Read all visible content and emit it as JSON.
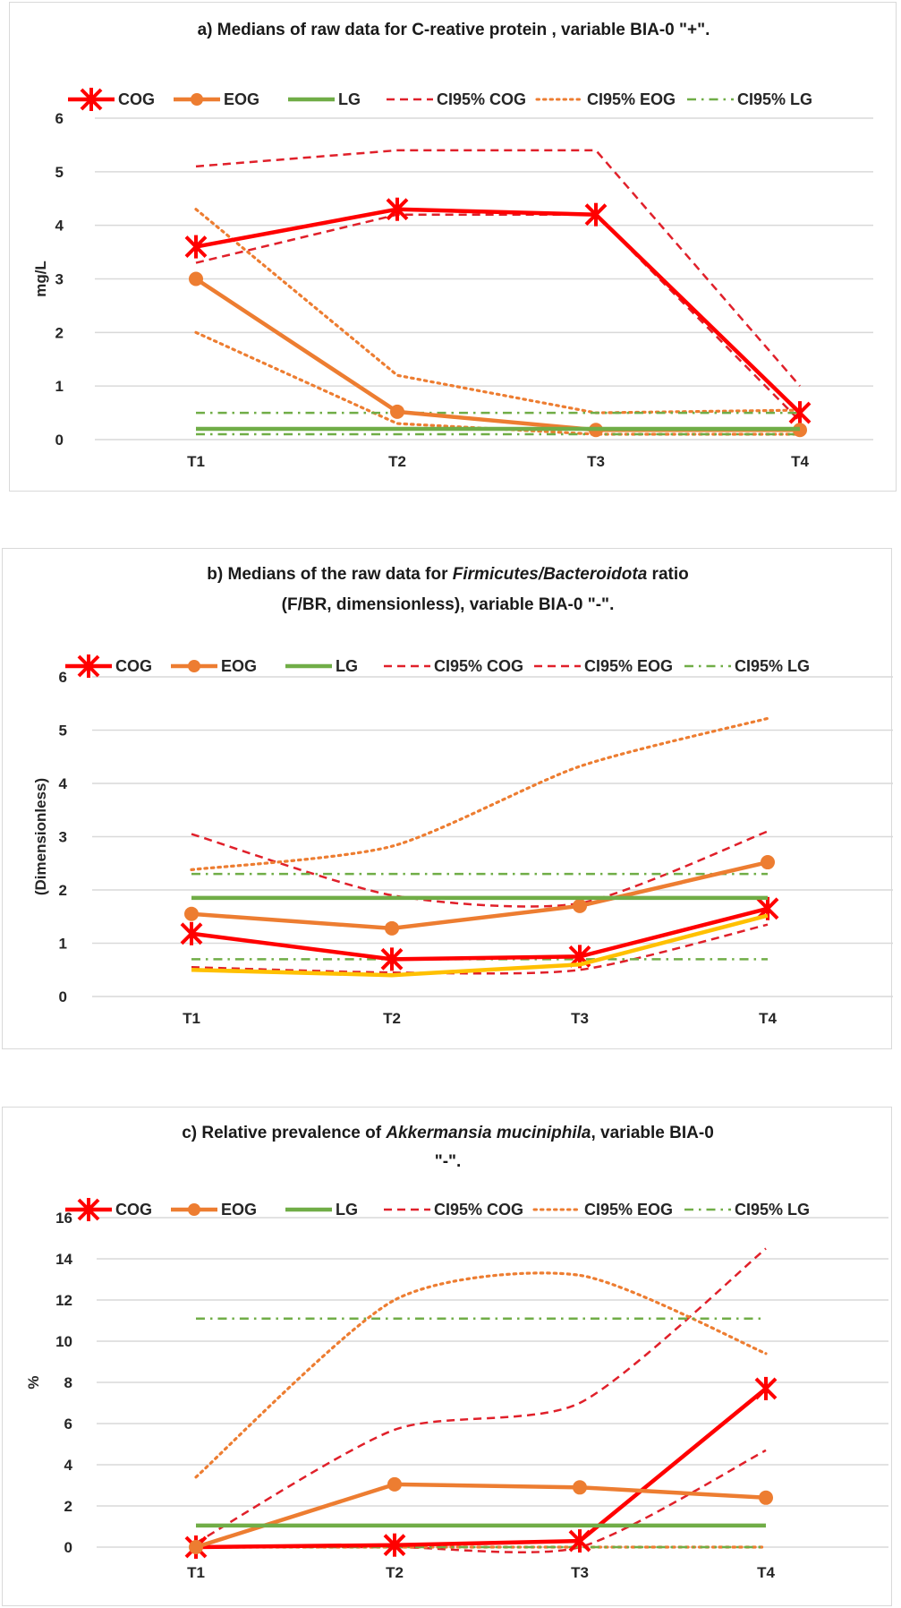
{
  "chart_data": [
    {
      "id": "a",
      "type": "line",
      "title": "a) Medians of  raw data for C-reative protein ,  variable BIA-0 \"+\".",
      "title_lines": [
        [
          {
            "text": "a) Medians of  raw data for C-reative protein ,  variable BIA-0 \"+\".",
            "italic": false
          }
        ]
      ],
      "xlabel": "",
      "ylabel": "mg/L",
      "categories": [
        "T1",
        "T2",
        "T3",
        "T4"
      ],
      "ylim": [
        0,
        6
      ],
      "yticks": [
        0,
        1,
        2,
        3,
        4,
        5,
        6
      ],
      "grid": true,
      "legend_position": "top",
      "legend": [
        "COG",
        "EOG",
        "LG",
        "CI95% COG",
        "CI95% EOG",
        "CI95% LG"
      ],
      "series": [
        {
          "name": "COG",
          "style": "solid-star",
          "color": "#ff0000",
          "values": [
            3.6,
            4.3,
            4.2,
            0.5
          ]
        },
        {
          "name": "EOG",
          "style": "solid-circle",
          "color": "#ed7d31",
          "values": [
            3.0,
            0.52,
            0.18,
            0.18
          ]
        },
        {
          "name": "LG",
          "style": "solid",
          "color": "#70ad47",
          "values": [
            0.2,
            0.2,
            0.2,
            0.2
          ]
        },
        {
          "name": "CI95% COG upper",
          "legend": "CI95% COG",
          "style": "dash",
          "color": "#e0202a",
          "values": [
            5.1,
            5.4,
            5.4,
            1.0
          ]
        },
        {
          "name": "CI95% COG lower",
          "legend": "CI95% COG",
          "style": "dash",
          "color": "#e0202a",
          "values": [
            3.3,
            4.2,
            4.2,
            0.35
          ]
        },
        {
          "name": "CI95% EOG upper",
          "legend": "CI95% EOG",
          "style": "dot",
          "color": "#ed7d31",
          "values": [
            4.3,
            1.2,
            0.5,
            0.55
          ]
        },
        {
          "name": "CI95% EOG lower",
          "legend": "CI95% EOG",
          "style": "dot",
          "color": "#ed7d31",
          "values": [
            2.0,
            0.3,
            0.1,
            0.1
          ]
        },
        {
          "name": "CI95% LG upper",
          "legend": "CI95% LG",
          "style": "dashdot",
          "color": "#70ad47",
          "values": [
            0.5,
            0.5,
            0.5,
            0.5
          ]
        },
        {
          "name": "CI95% LG lower",
          "legend": "CI95% LG",
          "style": "dashdot",
          "color": "#70ad47",
          "values": [
            0.1,
            0.1,
            0.1,
            0.1
          ]
        }
      ]
    },
    {
      "id": "b",
      "type": "line",
      "title": "b)  Medians of the raw data for Firmicutes/Bacteroidota ratio (F/BR, dimensionless), variable BIA-0 \"-\".",
      "title_lines": [
        [
          {
            "text": "b)  Medians of the raw data for ",
            "italic": false
          },
          {
            "text": "Firmicutes/Bacteroidota",
            "italic": true
          },
          {
            "text": "  ratio",
            "italic": false
          }
        ],
        [
          {
            "text": "(F/BR, dimensionless),  variable BIA-0 \"-\".",
            "italic": false
          }
        ]
      ],
      "xlabel": "",
      "ylabel": "(Dimensionless)",
      "categories": [
        "T1",
        "T2",
        "T3",
        "T4"
      ],
      "ylim": [
        0,
        6
      ],
      "yticks": [
        0,
        1,
        2,
        3,
        4,
        5,
        6
      ],
      "grid": true,
      "legend_position": "top",
      "legend": [
        "COG",
        "EOG",
        "LG",
        "CI95% COG",
        "CI95% EOG",
        "CI95% LG"
      ],
      "series": [
        {
          "name": "COG",
          "style": "solid-star",
          "color": "#ff0000",
          "values": [
            1.18,
            0.7,
            0.75,
            1.65
          ]
        },
        {
          "name": "EOG",
          "style": "solid-circle",
          "color": "#ed7d31",
          "values": [
            1.55,
            1.28,
            1.7,
            2.52
          ]
        },
        {
          "name": "LG",
          "style": "solid",
          "color": "#70ad47",
          "values": [
            1.85,
            1.85,
            1.85,
            1.85
          ]
        },
        {
          "name": "Yellow line (unlabeled)",
          "legend": "",
          "style": "solid",
          "color": "#ffc000",
          "values": [
            0.5,
            0.4,
            0.6,
            1.52
          ]
        },
        {
          "name": "CI95% COG upper",
          "legend": "CI95% COG",
          "style": "dash",
          "color": "#e0202a",
          "values": [
            3.05,
            1.9,
            1.75,
            3.1
          ]
        },
        {
          "name": "CI95% COG lower",
          "legend": "CI95% COG",
          "style": "dash",
          "color": "#e0202a",
          "values": [
            0.55,
            0.45,
            0.5,
            1.35
          ]
        },
        {
          "name": "CI95% EOG upper",
          "legend": "CI95% EOG",
          "style": "dot",
          "color": "#ed7d31",
          "values": [
            2.38,
            2.82,
            4.32,
            5.22
          ]
        },
        {
          "name": "CI95% LG upper",
          "legend": "CI95% LG",
          "style": "dashdot",
          "color": "#70ad47",
          "values": [
            2.3,
            2.3,
            2.3,
            2.3
          ]
        },
        {
          "name": "CI95% LG lower",
          "legend": "CI95% LG",
          "style": "dashdot",
          "color": "#70ad47",
          "values": [
            0.7,
            0.7,
            0.7,
            0.7
          ]
        }
      ],
      "legend_styles": {
        "CI95% EOG": "dash"
      }
    },
    {
      "id": "c",
      "type": "line",
      "title": "c) Relative prevalence of Akkermansia  muciniphila,  variable BIA-0 \"-\".",
      "title_lines": [
        [
          {
            "text": "c) Relative prevalence of ",
            "italic": false
          },
          {
            "text": "Akkermansia  muciniphila",
            "italic": true
          },
          {
            "text": ",  variable BIA-0",
            "italic": false
          }
        ],
        [
          {
            "text": "\"-\".",
            "italic": false
          }
        ]
      ],
      "xlabel": "",
      "ylabel": "%",
      "categories": [
        "T1",
        "T2",
        "T3",
        "T4"
      ],
      "ylim": [
        0,
        16
      ],
      "yticks": [
        0,
        2,
        4,
        6,
        8,
        10,
        12,
        14,
        16
      ],
      "grid": true,
      "legend_position": "top",
      "legend": [
        "COG",
        "EOG",
        "LG",
        "CI95% COG",
        "CI95% EOG",
        "CI95% LG"
      ],
      "series": [
        {
          "name": "COG",
          "style": "solid-star",
          "color": "#ff0000",
          "values": [
            0.0,
            0.1,
            0.3,
            7.7
          ]
        },
        {
          "name": "EOG",
          "style": "solid-circle",
          "color": "#ed7d31",
          "values": [
            0.0,
            3.05,
            2.9,
            2.4
          ]
        },
        {
          "name": "LG",
          "style": "solid",
          "color": "#70ad47",
          "values": [
            1.05,
            1.05,
            1.05,
            1.05
          ]
        },
        {
          "name": "CI95% COG upper",
          "legend": "CI95% COG",
          "style": "dash",
          "color": "#e0202a",
          "values": [
            0.2,
            5.7,
            7.0,
            14.5
          ]
        },
        {
          "name": "CI95% COG lower",
          "legend": "CI95% COG",
          "style": "dash",
          "color": "#e0202a",
          "values": [
            0.0,
            0.0,
            0.0,
            4.7
          ]
        },
        {
          "name": "CI95% EOG upper",
          "legend": "CI95% EOG",
          "style": "dot",
          "color": "#ed7d31",
          "values": [
            3.4,
            12.0,
            13.2,
            9.4
          ]
        },
        {
          "name": "CI95% EOG lower",
          "legend": "CI95% EOG",
          "style": "dot",
          "color": "#ed7d31",
          "values": [
            0.0,
            0.0,
            0.0,
            0.0
          ]
        },
        {
          "name": "CI95% LG upper",
          "legend": "CI95% LG",
          "style": "dashdot",
          "color": "#70ad47",
          "values": [
            11.1,
            11.1,
            11.1,
            11.1
          ]
        },
        {
          "name": "CI95% LG lower",
          "legend": "CI95% LG",
          "style": "dashdot",
          "color": "#70ad47",
          "values": [
            0.0,
            0.0,
            0.0,
            0.0
          ]
        }
      ]
    }
  ]
}
